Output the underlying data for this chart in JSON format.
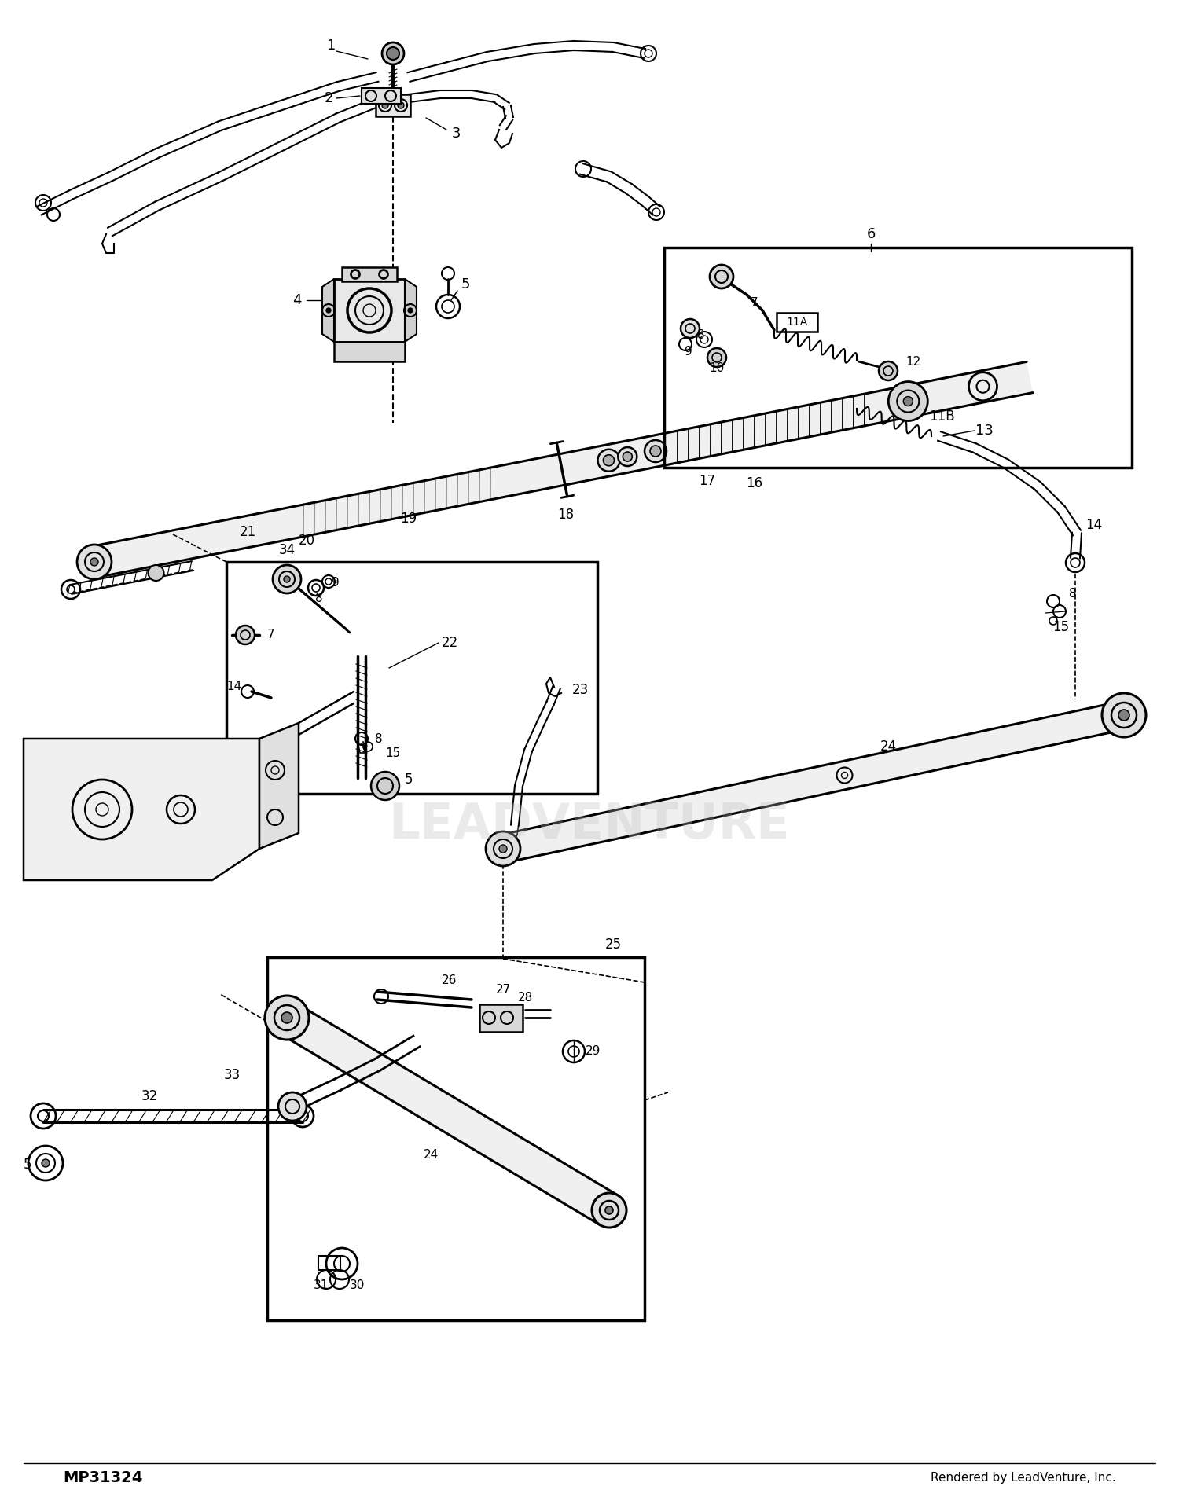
{
  "bg_color": "#ffffff",
  "line_color": "#000000",
  "watermark": "LEADVENTURE",
  "watermark_color": "#bbbbbb",
  "footer_left": "MP31324",
  "footer_right": "Rendered by LeadVenture, Inc.",
  "fig_width": 15.0,
  "fig_height": 18.96,
  "dpi": 100
}
